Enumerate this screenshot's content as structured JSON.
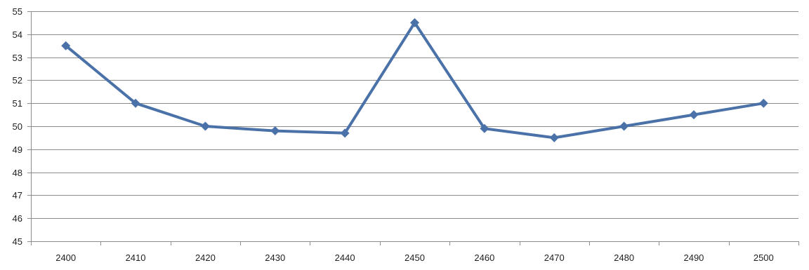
{
  "chart_data": {
    "type": "line",
    "title": "",
    "xlabel": "",
    "ylabel": "",
    "x": [
      2400,
      2410,
      2420,
      2430,
      2440,
      2450,
      2460,
      2470,
      2480,
      2490,
      2500
    ],
    "x_tick_labels": [
      "2400",
      "2410",
      "2420",
      "2430",
      "2440",
      "2450",
      "2460",
      "2470",
      "2480",
      "2490",
      "2500"
    ],
    "y_tick_labels": [
      "45",
      "46",
      "47",
      "48",
      "49",
      "50",
      "51",
      "52",
      "53",
      "54",
      "55"
    ],
    "ylim": [
      45,
      55
    ],
    "y_step": 1,
    "grid": true,
    "legend": "none",
    "marker": "diamond",
    "series": [
      {
        "values": [
          53.5,
          51.0,
          50.0,
          49.8,
          49.7,
          54.5,
          49.9,
          49.5,
          50.0,
          50.5,
          51.0
        ],
        "color": "#4a72a8"
      }
    ]
  }
}
